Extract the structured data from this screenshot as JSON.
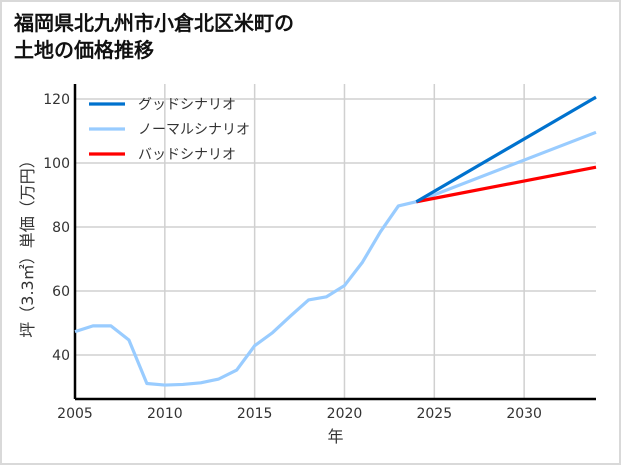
{
  "chart_data": {
    "type": "line",
    "title": "福岡県北九州市小倉北区米町の\n土地の価格推移",
    "xlabel": "年",
    "ylabel": "坪（3.3㎡）単価（万円）",
    "xlim": [
      2005,
      2034
    ],
    "ylim": [
      26.25,
      124.7
    ],
    "xticks": [
      2005,
      2010,
      2015,
      2020,
      2025,
      2030
    ],
    "yticks": [
      40,
      60,
      80,
      100,
      120
    ],
    "grid": true,
    "legend_position": "top-left",
    "series": [
      {
        "name": "グッドシナリオ",
        "color": "#0072CE",
        "x": [
          2024,
          2034
        ],
        "y": [
          87.9,
          120.6
        ]
      },
      {
        "name": "ノーマルシナリオ",
        "color": "#99CCFF",
        "x": [
          2005,
          2006,
          2007,
          2008,
          2009,
          2010,
          2011,
          2012,
          2013,
          2014,
          2015,
          2016,
          2017,
          2018,
          2019,
          2020,
          2021,
          2022,
          2023,
          2024,
          2034
        ],
        "y": [
          47.3,
          49.1,
          49.1,
          44.7,
          31.1,
          30.6,
          30.8,
          31.3,
          32.5,
          35.3,
          42.9,
          47.0,
          52.2,
          57.2,
          58.2,
          61.7,
          69.0,
          78.5,
          86.6,
          87.9,
          109.6
        ]
      },
      {
        "name": "バッドシナリオ",
        "color": "#FF0000",
        "x": [
          2024,
          2034
        ],
        "y": [
          87.9,
          98.7
        ]
      }
    ]
  }
}
